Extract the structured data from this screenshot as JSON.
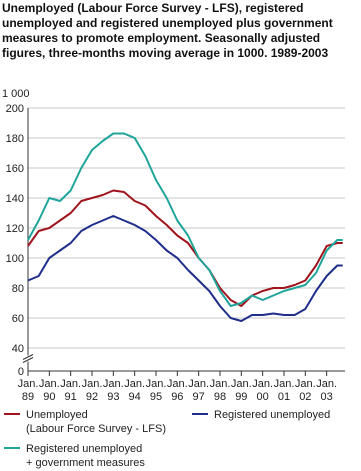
{
  "chart_data": {
    "type": "line",
    "title": "Unemployed (Labour Force Survey - LFS), registered unemployed and  registered unemployed plus government measures to promote employment. Seasonally adjusted figures, three-months moving average in 1000. 1989-2003",
    "y_unit": "1 000",
    "x": [
      1989,
      1989.5,
      1990,
      1990.5,
      1991,
      1991.5,
      1992,
      1992.5,
      1993,
      1993.5,
      1994,
      1994.5,
      1995,
      1995.5,
      1996,
      1996.5,
      1997,
      1997.5,
      1998,
      1998.5,
      1999,
      1999.5,
      2000,
      2000.5,
      2001,
      2001.5,
      2002,
      2002.5,
      2003,
      2003.5,
      2003.75
    ],
    "series": [
      {
        "name": "Unemployed (Labour Force Survey - LFS)",
        "color": "#a0141e",
        "values": [
          108,
          118,
          120,
          125,
          130,
          138,
          140,
          142,
          145,
          144,
          138,
          135,
          128,
          122,
          115,
          110,
          100,
          92,
          80,
          72,
          68,
          75,
          78,
          80,
          80,
          82,
          85,
          95,
          108,
          110,
          110
        ]
      },
      {
        "name": "Registered unemployed",
        "color": "#1f2e8a",
        "values": [
          85,
          88,
          100,
          105,
          110,
          118,
          122,
          125,
          128,
          125,
          122,
          118,
          112,
          105,
          100,
          92,
          85,
          78,
          68,
          60,
          58,
          62,
          62,
          63,
          62,
          62,
          66,
          78,
          88,
          95,
          95
        ]
      },
      {
        "name": "Registered unemployed + government measures",
        "color": "#1fa59a",
        "values": [
          112,
          125,
          140,
          138,
          145,
          160,
          172,
          178,
          183,
          183,
          180,
          168,
          152,
          140,
          125,
          115,
          100,
          92,
          78,
          68,
          70,
          75,
          72,
          75,
          78,
          80,
          82,
          90,
          105,
          112,
          112
        ]
      }
    ],
    "xlim": [
      1989,
      2003.86
    ],
    "xticks": [
      {
        "value": 1989,
        "label": "Jan. 89"
      },
      {
        "value": 1990,
        "label": "Jan. 90"
      },
      {
        "value": 1991,
        "label": "Jan. 91"
      },
      {
        "value": 1992,
        "label": "Jan. 92"
      },
      {
        "value": 1993,
        "label": "Jan. 93"
      },
      {
        "value": 1994,
        "label": "Jan. 94"
      },
      {
        "value": 1995,
        "label": "Jan. 95"
      },
      {
        "value": 1996,
        "label": "Jan. 96"
      },
      {
        "value": 1997,
        "label": "Jan. 97"
      },
      {
        "value": 1998,
        "label": "Jan. 98"
      },
      {
        "value": 1999,
        "label": "Jan. 99"
      },
      {
        "value": 2000,
        "label": "Jan. 00"
      },
      {
        "value": 2001,
        "label": "Jan. 01"
      },
      {
        "value": 2002,
        "label": "Jan. 02"
      },
      {
        "value": 2003,
        "label": "Jan. 03"
      }
    ],
    "ylim": [
      0,
      200
    ],
    "y_break": [
      0,
      40
    ],
    "yticks": [
      0,
      40,
      60,
      80,
      100,
      120,
      140,
      160,
      180,
      200
    ],
    "grid": true
  }
}
